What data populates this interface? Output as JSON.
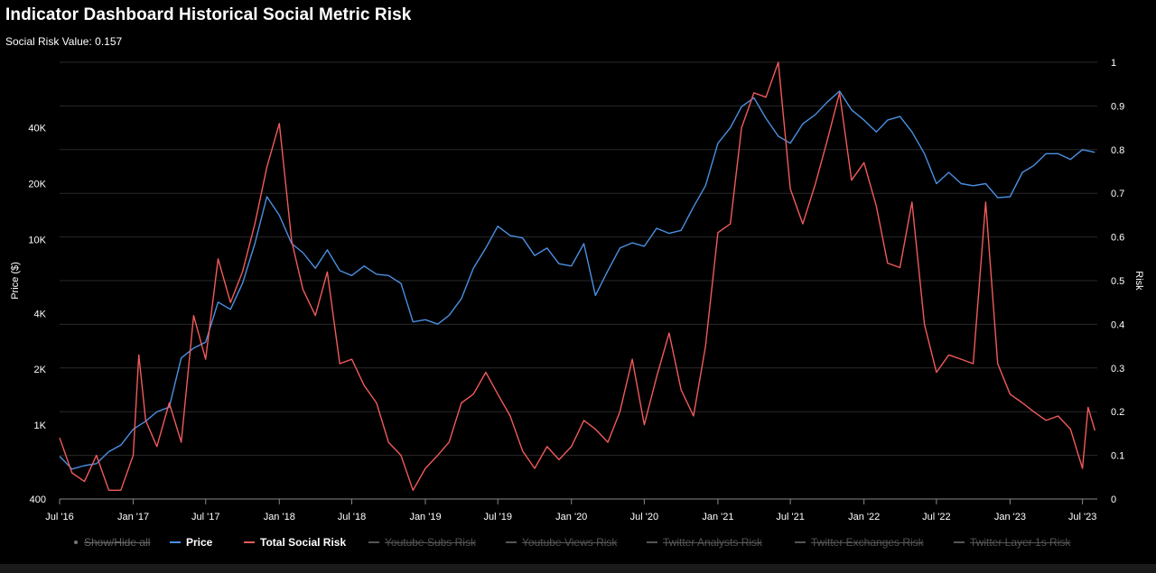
{
  "header": {
    "title": "Indicator Dashboard Historical Social Metric Risk",
    "subtitle": "Social Risk Value: 0.157"
  },
  "legend": {
    "show_hide_label": "Show/Hide all",
    "items": [
      {
        "label": "Price",
        "color": "#4a90e2",
        "enabled": true
      },
      {
        "label": "Total Social Risk",
        "color": "#f05a5a",
        "enabled": true
      },
      {
        "label": "Youtube Subs Risk",
        "color": "#555555",
        "enabled": false
      },
      {
        "label": "Youtube Views Risk",
        "color": "#555555",
        "enabled": false
      },
      {
        "label": "Twitter Analysts Risk",
        "color": "#555555",
        "enabled": false
      },
      {
        "label": "Twitter Exchanges Risk",
        "color": "#555555",
        "enabled": false
      },
      {
        "label": "Twitter Layer 1s Risk",
        "color": "#555555",
        "enabled": false
      }
    ]
  },
  "chart_data": {
    "type": "line",
    "y_left_label": "Price ($)",
    "y_right_label": "Risk",
    "y_left_scale": "log",
    "y_left_ticks": [
      {
        "value": 400,
        "label": "400"
      },
      {
        "value": 1000,
        "label": "1K"
      },
      {
        "value": 2000,
        "label": "2K"
      },
      {
        "value": 4000,
        "label": "4K"
      },
      {
        "value": 10000,
        "label": "10K"
      },
      {
        "value": 20000,
        "label": "20K"
      },
      {
        "value": 40000,
        "label": "40K"
      }
    ],
    "y_right_ticks": [
      0,
      0.1,
      0.2,
      0.3,
      0.4,
      0.5,
      0.6,
      0.7,
      0.8,
      0.9,
      1
    ],
    "y_right_range": [
      0,
      1
    ],
    "x_ticks": [
      {
        "date": "2016-07-01",
        "label": "Jul '16"
      },
      {
        "date": "2017-01-01",
        "label": "Jan '17"
      },
      {
        "date": "2017-07-01",
        "label": "Jul '17"
      },
      {
        "date": "2018-01-01",
        "label": "Jan '18"
      },
      {
        "date": "2018-07-01",
        "label": "Jul '18"
      },
      {
        "date": "2019-01-01",
        "label": "Jan '19"
      },
      {
        "date": "2019-07-01",
        "label": "Jul '19"
      },
      {
        "date": "2020-01-01",
        "label": "Jan '20"
      },
      {
        "date": "2020-07-01",
        "label": "Jul '20"
      },
      {
        "date": "2021-01-01",
        "label": "Jan '21"
      },
      {
        "date": "2021-07-01",
        "label": "Jul '21"
      },
      {
        "date": "2022-01-01",
        "label": "Jan '22"
      },
      {
        "date": "2022-07-01",
        "label": "Jul '22"
      },
      {
        "date": "2023-01-01",
        "label": "Jan '23"
      },
      {
        "date": "2023-07-01",
        "label": "Jul '23"
      }
    ],
    "x_range": [
      "2016-07-01",
      "2023-08-07"
    ],
    "grid": true,
    "legend_position": "bottom",
    "series": [
      {
        "name": "Price",
        "color": "#4a90e2",
        "axis": "left",
        "points": [
          [
            "2016-07-01",
            680
          ],
          [
            "2016-08-01",
            580
          ],
          [
            "2016-09-01",
            605
          ],
          [
            "2016-10-01",
            620
          ],
          [
            "2016-11-01",
            720
          ],
          [
            "2016-12-01",
            780
          ],
          [
            "2017-01-01",
            950
          ],
          [
            "2017-02-01",
            1050
          ],
          [
            "2017-03-01",
            1180
          ],
          [
            "2017-04-01",
            1250
          ],
          [
            "2017-05-01",
            2300
          ],
          [
            "2017-06-01",
            2600
          ],
          [
            "2017-07-01",
            2800
          ],
          [
            "2017-08-01",
            4600
          ],
          [
            "2017-09-01",
            4200
          ],
          [
            "2017-10-01",
            5800
          ],
          [
            "2017-11-01",
            9500
          ],
          [
            "2017-12-01",
            17000
          ],
          [
            "2018-01-01",
            13500
          ],
          [
            "2018-02-01",
            9500
          ],
          [
            "2018-03-01",
            8500
          ],
          [
            "2018-04-01",
            7000
          ],
          [
            "2018-05-01",
            8800
          ],
          [
            "2018-06-01",
            6800
          ],
          [
            "2018-07-01",
            6400
          ],
          [
            "2018-08-01",
            7200
          ],
          [
            "2018-09-01",
            6500
          ],
          [
            "2018-10-01",
            6400
          ],
          [
            "2018-11-01",
            5800
          ],
          [
            "2018-12-01",
            3600
          ],
          [
            "2019-01-01",
            3700
          ],
          [
            "2019-02-01",
            3500
          ],
          [
            "2019-03-01",
            3900
          ],
          [
            "2019-04-01",
            4800
          ],
          [
            "2019-05-01",
            7000
          ],
          [
            "2019-06-01",
            9000
          ],
          [
            "2019-07-01",
            11800
          ],
          [
            "2019-08-01",
            10500
          ],
          [
            "2019-09-01",
            10200
          ],
          [
            "2019-10-01",
            8200
          ],
          [
            "2019-11-01",
            9000
          ],
          [
            "2019-12-01",
            7400
          ],
          [
            "2020-01-01",
            7200
          ],
          [
            "2020-02-01",
            9500
          ],
          [
            "2020-03-01",
            5000
          ],
          [
            "2020-04-01",
            6800
          ],
          [
            "2020-05-01",
            9000
          ],
          [
            "2020-06-01",
            9600
          ],
          [
            "2020-07-01",
            9200
          ],
          [
            "2020-08-01",
            11500
          ],
          [
            "2020-09-01",
            10800
          ],
          [
            "2020-10-01",
            11200
          ],
          [
            "2020-11-01",
            15000
          ],
          [
            "2020-12-01",
            19500
          ],
          [
            "2021-01-01",
            33000
          ],
          [
            "2021-02-01",
            40000
          ],
          [
            "2021-03-01",
            52000
          ],
          [
            "2021-04-01",
            58000
          ],
          [
            "2021-05-01",
            45000
          ],
          [
            "2021-06-01",
            36000
          ],
          [
            "2021-07-01",
            33000
          ],
          [
            "2021-08-01",
            42000
          ],
          [
            "2021-09-01",
            47000
          ],
          [
            "2021-10-01",
            55000
          ],
          [
            "2021-11-01",
            63000
          ],
          [
            "2021-12-01",
            50000
          ],
          [
            "2022-01-01",
            44000
          ],
          [
            "2022-02-01",
            38000
          ],
          [
            "2022-03-01",
            44000
          ],
          [
            "2022-04-01",
            46000
          ],
          [
            "2022-05-01",
            38000
          ],
          [
            "2022-06-01",
            29000
          ],
          [
            "2022-07-01",
            20000
          ],
          [
            "2022-08-01",
            23000
          ],
          [
            "2022-09-01",
            20000
          ],
          [
            "2022-10-01",
            19500
          ],
          [
            "2022-11-01",
            20000
          ],
          [
            "2022-12-01",
            16800
          ],
          [
            "2023-01-01",
            17000
          ],
          [
            "2023-02-01",
            23000
          ],
          [
            "2023-03-01",
            25000
          ],
          [
            "2023-04-01",
            29000
          ],
          [
            "2023-05-01",
            29000
          ],
          [
            "2023-06-01",
            27000
          ],
          [
            "2023-07-01",
            30500
          ],
          [
            "2023-08-01",
            29500
          ]
        ]
      },
      {
        "name": "Total Social Risk",
        "color": "#f05a5a",
        "axis": "right",
        "points": [
          [
            "2016-07-01",
            0.14
          ],
          [
            "2016-08-01",
            0.06
          ],
          [
            "2016-09-01",
            0.04
          ],
          [
            "2016-10-01",
            0.1
          ],
          [
            "2016-11-01",
            0.02
          ],
          [
            "2016-12-01",
            0.02
          ],
          [
            "2017-01-01",
            0.1
          ],
          [
            "2017-01-15",
            0.33
          ],
          [
            "2017-02-01",
            0.18
          ],
          [
            "2017-03-01",
            0.12
          ],
          [
            "2017-04-01",
            0.22
          ],
          [
            "2017-05-01",
            0.13
          ],
          [
            "2017-06-01",
            0.42
          ],
          [
            "2017-07-01",
            0.32
          ],
          [
            "2017-08-01",
            0.55
          ],
          [
            "2017-09-01",
            0.45
          ],
          [
            "2017-10-01",
            0.52
          ],
          [
            "2017-11-01",
            0.63
          ],
          [
            "2017-12-01",
            0.76
          ],
          [
            "2018-01-01",
            0.86
          ],
          [
            "2018-02-01",
            0.59
          ],
          [
            "2018-03-01",
            0.48
          ],
          [
            "2018-04-01",
            0.42
          ],
          [
            "2018-05-01",
            0.52
          ],
          [
            "2018-06-01",
            0.31
          ],
          [
            "2018-07-01",
            0.32
          ],
          [
            "2018-08-01",
            0.26
          ],
          [
            "2018-09-01",
            0.22
          ],
          [
            "2018-10-01",
            0.13
          ],
          [
            "2018-11-01",
            0.1
          ],
          [
            "2018-12-01",
            0.02
          ],
          [
            "2019-01-01",
            0.07
          ],
          [
            "2019-02-01",
            0.1
          ],
          [
            "2019-03-01",
            0.13
          ],
          [
            "2019-04-01",
            0.22
          ],
          [
            "2019-05-01",
            0.24
          ],
          [
            "2019-06-01",
            0.29
          ],
          [
            "2019-07-01",
            0.24
          ],
          [
            "2019-08-01",
            0.19
          ],
          [
            "2019-09-01",
            0.11
          ],
          [
            "2019-10-01",
            0.07
          ],
          [
            "2019-11-01",
            0.12
          ],
          [
            "2019-12-01",
            0.09
          ],
          [
            "2020-01-01",
            0.12
          ],
          [
            "2020-02-01",
            0.18
          ],
          [
            "2020-03-01",
            0.16
          ],
          [
            "2020-04-01",
            0.13
          ],
          [
            "2020-05-01",
            0.2
          ],
          [
            "2020-06-01",
            0.32
          ],
          [
            "2020-07-01",
            0.17
          ],
          [
            "2020-08-01",
            0.28
          ],
          [
            "2020-09-01",
            0.38
          ],
          [
            "2020-10-01",
            0.25
          ],
          [
            "2020-11-01",
            0.19
          ],
          [
            "2020-12-01",
            0.35
          ],
          [
            "2021-01-01",
            0.61
          ],
          [
            "2021-02-01",
            0.63
          ],
          [
            "2021-03-01",
            0.85
          ],
          [
            "2021-04-01",
            0.93
          ],
          [
            "2021-05-01",
            0.92
          ],
          [
            "2021-06-01",
            1.0
          ],
          [
            "2021-07-01",
            0.71
          ],
          [
            "2021-08-01",
            0.63
          ],
          [
            "2021-09-01",
            0.72
          ],
          [
            "2021-10-01",
            0.82
          ],
          [
            "2021-11-01",
            0.93
          ],
          [
            "2021-12-01",
            0.73
          ],
          [
            "2022-01-01",
            0.77
          ],
          [
            "2022-02-01",
            0.67
          ],
          [
            "2022-03-01",
            0.54
          ],
          [
            "2022-04-01",
            0.53
          ],
          [
            "2022-05-01",
            0.68
          ],
          [
            "2022-06-01",
            0.4
          ],
          [
            "2022-07-01",
            0.29
          ],
          [
            "2022-08-01",
            0.33
          ],
          [
            "2022-09-01",
            0.32
          ],
          [
            "2022-10-01",
            0.31
          ],
          [
            "2022-11-01",
            0.68
          ],
          [
            "2022-12-01",
            0.31
          ],
          [
            "2023-01-01",
            0.24
          ],
          [
            "2023-02-01",
            0.22
          ],
          [
            "2023-03-01",
            0.2
          ],
          [
            "2023-04-01",
            0.18
          ],
          [
            "2023-05-01",
            0.19
          ],
          [
            "2023-06-01",
            0.16
          ],
          [
            "2023-07-01",
            0.07
          ],
          [
            "2023-07-15",
            0.21
          ],
          [
            "2023-08-01",
            0.157
          ]
        ]
      }
    ]
  }
}
